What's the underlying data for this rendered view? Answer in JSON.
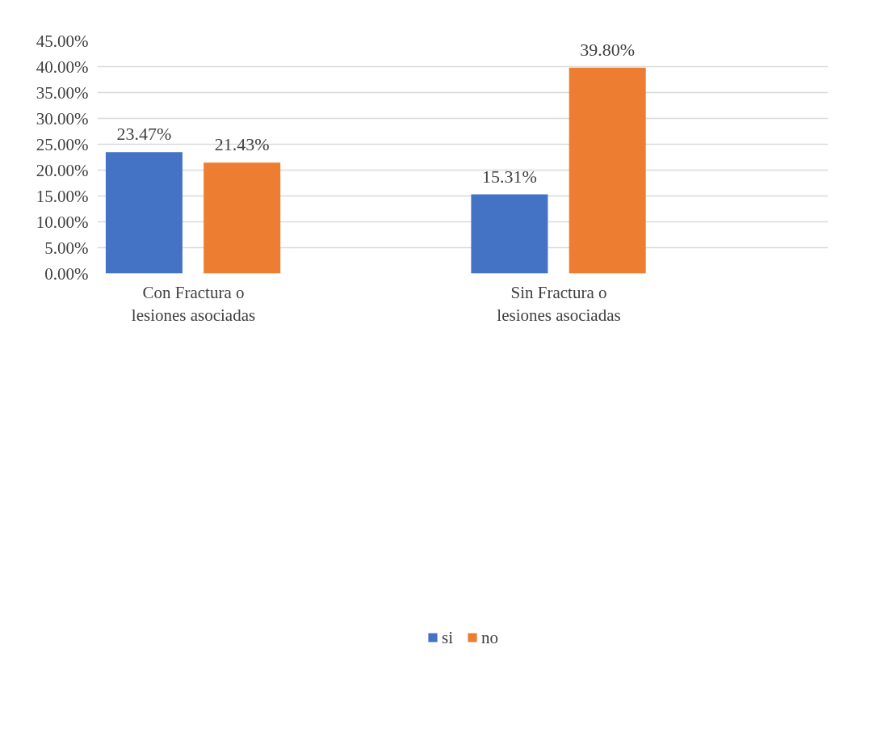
{
  "chart_data": {
    "type": "bar",
    "categories": [
      "Con Fractura o\nlesiones asociadas",
      "Sin Fractura o\nlesiones asociadas"
    ],
    "series": [
      {
        "name": "si",
        "color": "#4472c4",
        "values": [
          23.47,
          15.31
        ],
        "value_labels": [
          "23.47%",
          "15.31%"
        ]
      },
      {
        "name": "no",
        "color": "#ed7d31",
        "values": [
          21.43,
          39.8
        ],
        "value_labels": [
          "21.43%",
          "39.80%"
        ]
      }
    ],
    "ylim": [
      0,
      45
    ],
    "yticks": [
      {
        "value": 0,
        "label": "0.00%"
      },
      {
        "value": 5,
        "label": "5.00%"
      },
      {
        "value": 10,
        "label": "10.00%"
      },
      {
        "value": 15,
        "label": "15.00%"
      },
      {
        "value": 20,
        "label": "20.00%"
      },
      {
        "value": 25,
        "label": "25.00%"
      },
      {
        "value": 30,
        "label": "30.00%"
      },
      {
        "value": 35,
        "label": "35.00%"
      },
      {
        "value": 40,
        "label": "40.00%"
      },
      {
        "value": 45,
        "label": "45.00%"
      }
    ],
    "grid": "y",
    "legend": "bottom"
  }
}
